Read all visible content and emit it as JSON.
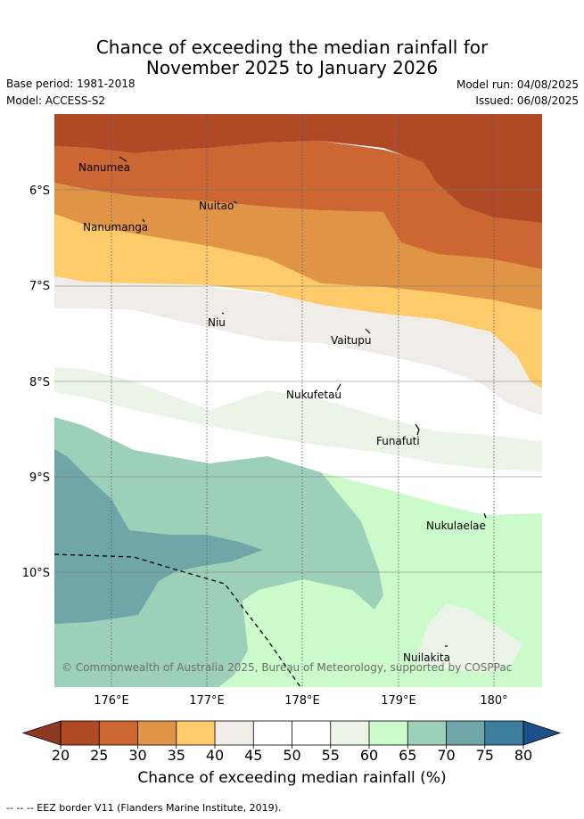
{
  "header": {
    "title_line1": "Chance of exceeding the median rainfall for",
    "title_line2": "November 2025 to January 2026",
    "base_period": "Base period: 1981-2018",
    "model": "Model: ACCESS-S2",
    "model_run": "Model run: 04/08/2025",
    "issued": "Issued: 06/08/2025"
  },
  "map": {
    "lat_labels": [
      "6°S",
      "7°S",
      "8°S",
      "9°S",
      "10°S"
    ],
    "lon_labels": [
      "176°E",
      "177°E",
      "178°E",
      "179°E",
      "180°"
    ],
    "places": [
      "Nanumea",
      "Nuitao",
      "Nanumanga",
      "Niu",
      "Vaitupu",
      "Nukufetau",
      "Funafuti",
      "Nukulaelae",
      "Nuilakita"
    ],
    "copyright": "© Commonwealth of Australia 2025, Bureau of Meteorology, supported by COSPPac",
    "eez_border": "shown as dashed line"
  },
  "colorbar": {
    "ticks": [
      "20",
      "25",
      "30",
      "35",
      "40",
      "45",
      "50",
      "55",
      "60",
      "65",
      "70",
      "75",
      "80"
    ],
    "colors": [
      "#b04a26",
      "#cc6633",
      "#e09446",
      "#fdcb6a",
      "#f0ece7",
      "#ffffff",
      "#ffffff",
      "#eaf5e8",
      "#cbfacb",
      "#9dd0b8",
      "#70a6a8",
      "#3f7f9e"
    ],
    "under_color": "#8e3a22",
    "over_color": "#1d4f8b",
    "label": "Chance of exceeding median rainfall (%)"
  },
  "footer": {
    "legend_text": "--  --  -- EEZ border V11 (Flanders Marine Institute, 2019)."
  }
}
